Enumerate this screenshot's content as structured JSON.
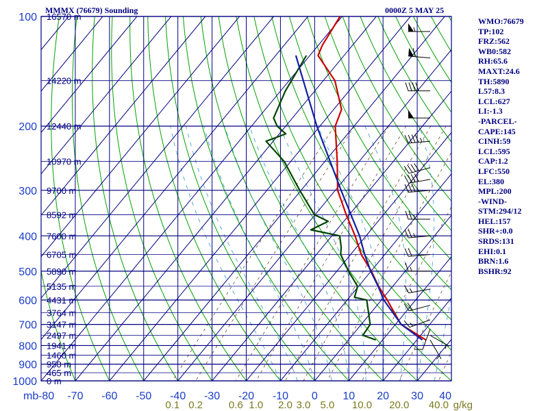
{
  "header": {
    "title": "MMMX (76679) Sounding",
    "datetime": "0000Z  5 MAY 25"
  },
  "side_panel": [
    "WMO:76679",
    "TP:102",
    "FRZ:562",
    "WB0:582",
    "RH:65.6",
    "MAXT:24.6",
    "TH:5890",
    "L57:8.3",
    "LCL:627",
    "LI:-1.3",
    "-PARCEL-",
    "CAPE:145",
    "CINH:59",
    "LCL:595",
    "CAP:1.2",
    "LFC:550",
    "EL:380",
    "MPL:200",
    "-WIND-",
    "STM:294/12",
    "HEL:157",
    "SHR+:0.0",
    "SRDS:131",
    "EHI:0.1",
    "BRN:1.6",
    "BSHR:92"
  ],
  "colors": {
    "grid": "#000080",
    "dry_adiabats": "#00a000",
    "mixing_ratio": "#6b4a2a",
    "moist_adiabats": "#4a9fd0",
    "temperature": "#cc0000",
    "dewpoint": "#004400",
    "parcel": "#1020a0",
    "pressure_labels": "#1a3cc8",
    "mixing_labels": "#7a7a20",
    "wind_barbs": "#000000"
  },
  "chart_data": {
    "type": "skew-t",
    "title": "MMMX (76679) Sounding",
    "pressure_unit": "mb",
    "pressure_levels": [
      100,
      200,
      300,
      400,
      500,
      600,
      700,
      800,
      900,
      1000
    ],
    "pressure_range": [
      100,
      1000
    ],
    "temperature_ticks": [
      -80,
      -70,
      -60,
      -50,
      -40,
      -30,
      -20,
      -10,
      0,
      10,
      20,
      30,
      40
    ],
    "temperature_range": [
      -80,
      40
    ],
    "height_labels": [
      {
        "p": 100,
        "label": "16570 m"
      },
      {
        "p": 150,
        "label": "14220 m"
      },
      {
        "p": 200,
        "label": "12440 m"
      },
      {
        "p": 250,
        "label": "10970 m"
      },
      {
        "p": 300,
        "label": "9700 m"
      },
      {
        "p": 350,
        "label": "8592 m"
      },
      {
        "p": 400,
        "label": "7600 m"
      },
      {
        "p": 450,
        "label": "6705 m"
      },
      {
        "p": 500,
        "label": "5890 m"
      },
      {
        "p": 550,
        "label": "5135 m"
      },
      {
        "p": 600,
        "label": "4431 m"
      },
      {
        "p": 650,
        "label": "3764 m"
      },
      {
        "p": 700,
        "label": "3147 m"
      },
      {
        "p": 750,
        "label": "2497 m"
      },
      {
        "p": 800,
        "label": "1941 m"
      },
      {
        "p": 850,
        "label": "1460 m"
      },
      {
        "p": 900,
        "label": "950 m"
      },
      {
        "p": 950,
        "label": "465 m"
      },
      {
        "p": 1000,
        "label": "0 m"
      }
    ],
    "mixing_ratio_labels": [
      "0.1",
      "0.2",
      "0.6",
      "1.0",
      "2.0",
      "3.0",
      "5.0",
      "10.0",
      "20.0",
      "40.0"
    ],
    "mixing_ratio_unit": "g/kg",
    "temperature": [
      [
        100,
        -80.6
      ],
      [
        120,
        -78.8
      ],
      [
        128,
        -77.6
      ],
      [
        150,
        -66.6
      ],
      [
        180,
        -57.7
      ],
      [
        200,
        -55.5
      ],
      [
        250,
        -46.4
      ],
      [
        300,
        -39.3
      ],
      [
        350,
        -30.9
      ],
      [
        400,
        -23.2
      ],
      [
        450,
        -16.9
      ],
      [
        500,
        -9.9
      ],
      [
        550,
        -4.2
      ],
      [
        600,
        1.7
      ],
      [
        700,
        11.6
      ],
      [
        772,
        22.6
      ]
    ],
    "dewpoint": [
      [
        128,
        -81.0
      ],
      [
        160,
        -78.6
      ],
      [
        190,
        -75.5
      ],
      [
        200,
        -72.5
      ],
      [
        210,
        -68.1
      ],
      [
        220,
        -72.1
      ],
      [
        250,
        -61.9
      ],
      [
        300,
        -50.4
      ],
      [
        350,
        -40.2
      ],
      [
        365,
        -34.6
      ],
      [
        385,
        -37.6
      ],
      [
        400,
        -27.7
      ],
      [
        430,
        -24.5
      ],
      [
        450,
        -22.9
      ],
      [
        500,
        -16.6
      ],
      [
        550,
        -10.3
      ],
      [
        590,
        -8.5
      ],
      [
        600,
        -4.3
      ],
      [
        700,
        2.6
      ],
      [
        750,
        3.1
      ],
      [
        772,
        8.0
      ]
    ],
    "parcel": [
      [
        128,
        -84.1
      ],
      [
        200,
        -60.9
      ],
      [
        300,
        -38.3
      ],
      [
        400,
        -21.9
      ],
      [
        450,
        -15.9
      ],
      [
        500,
        -10.1
      ],
      [
        550,
        -4.3
      ],
      [
        600,
        0.7
      ],
      [
        700,
        11.7
      ],
      [
        772,
        21.6
      ]
    ],
    "wind_barbs": [
      {
        "p": 110,
        "dir": 270,
        "spd": 55
      },
      {
        "p": 130,
        "dir": 275,
        "spd": 60
      },
      {
        "p": 160,
        "dir": 270,
        "spd": 40
      },
      {
        "p": 190,
        "dir": 270,
        "spd": 50
      },
      {
        "p": 220,
        "dir": 265,
        "spd": 45
      },
      {
        "p": 260,
        "dir": 255,
        "spd": 40
      },
      {
        "p": 280,
        "dir": 260,
        "spd": 40
      },
      {
        "p": 300,
        "dir": 265,
        "spd": 35
      },
      {
        "p": 360,
        "dir": 270,
        "spd": 25
      },
      {
        "p": 400,
        "dir": 265,
        "spd": 25
      },
      {
        "p": 450,
        "dir": 265,
        "spd": 20
      },
      {
        "p": 500,
        "dir": 270,
        "spd": 15
      },
      {
        "p": 560,
        "dir": 260,
        "spd": 15
      },
      {
        "p": 620,
        "dir": 255,
        "spd": 20
      },
      {
        "p": 680,
        "dir": 250,
        "spd": 15
      },
      {
        "p": 720,
        "dir": 200,
        "spd": 10
      },
      {
        "p": 750,
        "dir": 120,
        "spd": 5
      },
      {
        "p": 772,
        "dir": 150,
        "spd": 5
      }
    ]
  }
}
